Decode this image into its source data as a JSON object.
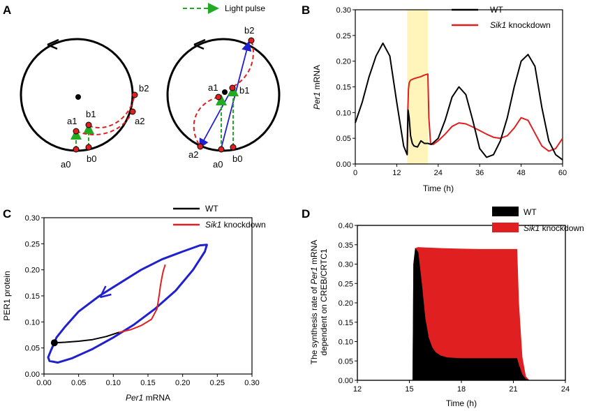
{
  "panels": {
    "A": "A",
    "B": "B",
    "C": "C",
    "D": "D"
  },
  "panelA": {
    "legend_label": "Light pulse",
    "colors": {
      "circle": "#000000",
      "pulse": "#22aa22",
      "phase_path": "#e02020",
      "shift": "#2020cc",
      "points": "#e02020"
    },
    "left_points": [
      "a0",
      "b0",
      "a1",
      "b1",
      "a2",
      "b2"
    ],
    "right_points": [
      "a0",
      "b0",
      "a1",
      "b1",
      "a2",
      "b2"
    ]
  },
  "chart_data": [
    {
      "id": "B",
      "type": "line",
      "title": "",
      "xlabel": "Time (h)",
      "ylabel_italic": "Per1",
      "ylabel_rest": " mRNA",
      "xlim": [
        0,
        60
      ],
      "ylim": [
        0,
        0.3
      ],
      "xticks": [
        "0",
        "12",
        "24",
        "36",
        "48",
        "60"
      ],
      "yticks": [
        "0.00",
        "0.05",
        "0.10",
        "0.15",
        "0.20",
        "0.25",
        "0.30"
      ],
      "highlight": {
        "x_from": 15,
        "x_to": 21,
        "color": "#fff5bb"
      },
      "legend": [
        {
          "name": "WT",
          "color": "#000000"
        },
        {
          "name_italic": "Sik1",
          "name_rest": " knockdown",
          "color": "#e02020"
        }
      ],
      "series": [
        {
          "name": "WT",
          "color": "#000000",
          "x": [
            0,
            2,
            4,
            6,
            8,
            10,
            12,
            14,
            15,
            15.3,
            15.6,
            16,
            16.5,
            17,
            18,
            19,
            20,
            21,
            22,
            24,
            26,
            28,
            30,
            32,
            34,
            36,
            38,
            40,
            42,
            44,
            46,
            48,
            50,
            52,
            54,
            56,
            58,
            60
          ],
          "y": [
            0.08,
            0.12,
            0.17,
            0.21,
            0.235,
            0.21,
            0.12,
            0.035,
            0.018,
            0.105,
            0.09,
            0.055,
            0.04,
            0.035,
            0.033,
            0.045,
            0.04,
            0.04,
            0.038,
            0.05,
            0.085,
            0.13,
            0.15,
            0.135,
            0.085,
            0.03,
            0.013,
            0.018,
            0.045,
            0.09,
            0.15,
            0.2,
            0.213,
            0.19,
            0.11,
            0.045,
            0.018,
            0.008
          ]
        },
        {
          "name": "Sik1 knockdown",
          "color": "#e02020",
          "x": [
            15,
            15.2,
            15.4,
            15.6,
            16,
            17,
            18,
            19,
            20,
            21,
            21.3,
            21.8,
            22.5,
            24,
            26,
            28,
            30,
            32,
            34,
            36,
            38,
            40,
            42,
            44,
            46,
            48,
            50,
            52,
            54,
            56,
            58,
            60
          ],
          "y": [
            0.02,
            0.1,
            0.145,
            0.158,
            0.163,
            0.166,
            0.168,
            0.17,
            0.173,
            0.175,
            0.09,
            0.04,
            0.038,
            0.045,
            0.058,
            0.073,
            0.08,
            0.078,
            0.072,
            0.065,
            0.058,
            0.052,
            0.05,
            0.055,
            0.07,
            0.09,
            0.085,
            0.06,
            0.035,
            0.025,
            0.03,
            0.05
          ]
        }
      ]
    },
    {
      "id": "C",
      "type": "line",
      "title": "",
      "xlabel_italic": "Per1",
      "xlabel_rest": " mRNA",
      "ylabel": "PER1 protein",
      "xlim": [
        0,
        0.3
      ],
      "ylim": [
        0,
        0.3
      ],
      "xticks": [
        "0.00",
        "0.05",
        "0.10",
        "0.15",
        "0.20",
        "0.25",
        "0.30"
      ],
      "yticks": [
        "0.00",
        "0.05",
        "0.10",
        "0.15",
        "0.20",
        "0.25",
        "0.30"
      ],
      "legend": [
        {
          "name": "WT",
          "color": "#000000"
        },
        {
          "name_italic": "Sik1",
          "name_rest": " knockdown",
          "color": "#e02020"
        }
      ],
      "series": [
        {
          "name": "limit cycle",
          "color": "#2020cc",
          "x": [
            0.015,
            0.01,
            0.006,
            0.008,
            0.02,
            0.04,
            0.07,
            0.1,
            0.13,
            0.16,
            0.19,
            0.215,
            0.232,
            0.235,
            0.225,
            0.2,
            0.17,
            0.14,
            0.11,
            0.08,
            0.05,
            0.03,
            0.018,
            0.015
          ],
          "y": [
            0.06,
            0.045,
            0.032,
            0.025,
            0.022,
            0.03,
            0.048,
            0.07,
            0.095,
            0.125,
            0.16,
            0.2,
            0.235,
            0.248,
            0.247,
            0.235,
            0.22,
            0.2,
            0.175,
            0.15,
            0.12,
            0.09,
            0.07,
            0.06
          ]
        },
        {
          "name": "WT",
          "color": "#000000",
          "x": [
            0.015,
            0.03,
            0.05,
            0.07,
            0.09,
            0.108
          ],
          "y": [
            0.06,
            0.061,
            0.063,
            0.066,
            0.072,
            0.08
          ]
        },
        {
          "name": "Sik1 knockdown",
          "color": "#e02020",
          "x": [
            0.108,
            0.125,
            0.14,
            0.155,
            0.163,
            0.166,
            0.168,
            0.17,
            0.172,
            0.175
          ],
          "y": [
            0.08,
            0.085,
            0.093,
            0.105,
            0.125,
            0.15,
            0.17,
            0.185,
            0.198,
            0.21
          ]
        }
      ],
      "start_point": {
        "x": 0.015,
        "y": 0.06
      }
    },
    {
      "id": "D",
      "type": "area",
      "title": "",
      "xlabel": "Time (h)",
      "ylabel_lines": [
        "The synthesis rate of ",
        "Per1",
        " mRNA",
        "dependent on CREB/CRTC1"
      ],
      "xlim": [
        12,
        24
      ],
      "ylim": [
        0,
        0.4
      ],
      "xticks": [
        "12",
        "15",
        "18",
        "21",
        "24"
      ],
      "yticks": [
        "0.00",
        "0.05",
        "0.10",
        "0.15",
        "0.20",
        "0.25",
        "0.30",
        "0.35",
        "0.40"
      ],
      "legend": [
        {
          "name": "WT",
          "color": "#000000"
        },
        {
          "name_italic": "Sik1",
          "name_rest": " knockdown",
          "color": "#e02020"
        }
      ],
      "series": [
        {
          "name": "Sik1 knockdown",
          "color": "#e02020",
          "x": [
            15.2,
            15.25,
            15.35,
            15.5,
            16,
            17,
            18,
            19,
            20,
            21,
            21.2,
            21.3,
            21.5,
            21.7,
            21.9
          ],
          "y": [
            0,
            0.3,
            0.34,
            0.343,
            0.342,
            0.34,
            0.339,
            0.338,
            0.338,
            0.338,
            0.338,
            0.2,
            0.06,
            0.01,
            0
          ]
        },
        {
          "name": "WT",
          "color": "#000000",
          "x": [
            15.2,
            15.25,
            15.35,
            15.5,
            15.7,
            15.9,
            16.1,
            16.3,
            16.5,
            16.8,
            17.2,
            18,
            19,
            20,
            21,
            21.2,
            21.3,
            21.5,
            21.7,
            21.9
          ],
          "y": [
            0,
            0.3,
            0.34,
            0.33,
            0.25,
            0.16,
            0.11,
            0.085,
            0.072,
            0.063,
            0.058,
            0.056,
            0.056,
            0.056,
            0.056,
            0.056,
            0.04,
            0.015,
            0.003,
            0
          ]
        }
      ]
    }
  ]
}
